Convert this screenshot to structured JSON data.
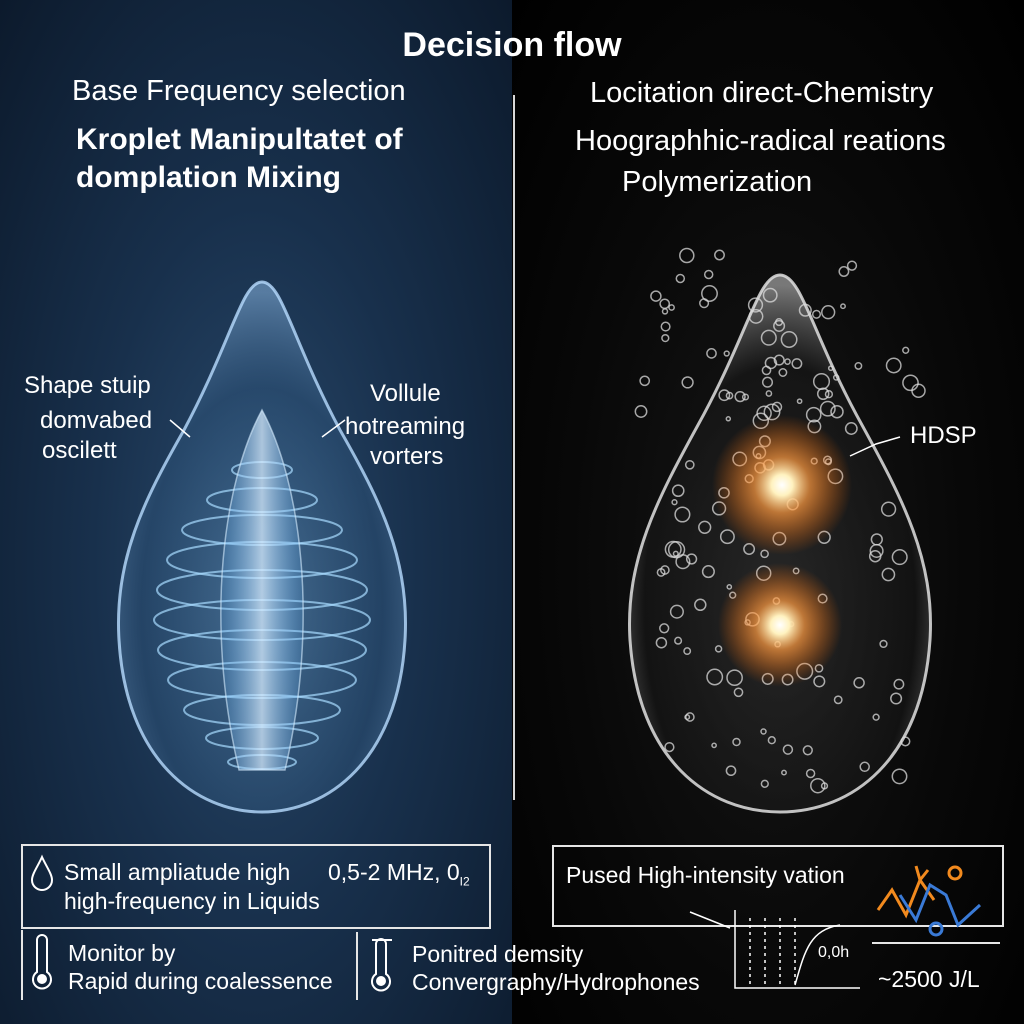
{
  "title": "Decision flow",
  "left": {
    "heading": "Base Frequency selection",
    "subheading": [
      "Kroplet Manipultatet of",
      "domplation Mixing"
    ],
    "callout_left": [
      "Shape stuip",
      "domvabed",
      "oscilett"
    ],
    "callout_right": [
      "Vollule",
      "hotreaming",
      "vorters"
    ],
    "box_top": [
      "Small ampliatude high",
      "0,5-2 MHz, 0",
      "I2",
      "high-frequency in Liquids"
    ],
    "box_bottom_left": [
      "Monitor by",
      "Rapid during coalessence"
    ],
    "box_bottom_center": [
      "Ponitred demsity",
      "Convergraphy/Hydrophones"
    ]
  },
  "right": {
    "heading": "Locitation direct-Chemistry",
    "subheading": [
      "Hoographhic-radical reations",
      "Polymerization"
    ],
    "callout": "HDSP",
    "box_top": "Pused High-intensity vation",
    "plot_label": "0,0h",
    "energy": "~2500 J/L"
  },
  "icons": [
    "droplet-icon",
    "thermometer-icon",
    "thermometer-icon",
    "zigzag-graph-icon"
  ],
  "colors": {
    "left_bg": "#18304c",
    "accent_blue": "#7fc8ff",
    "glow_orange": "#ffb060",
    "graph_orange": "#f28a1e",
    "graph_blue": "#3a7ad6"
  }
}
